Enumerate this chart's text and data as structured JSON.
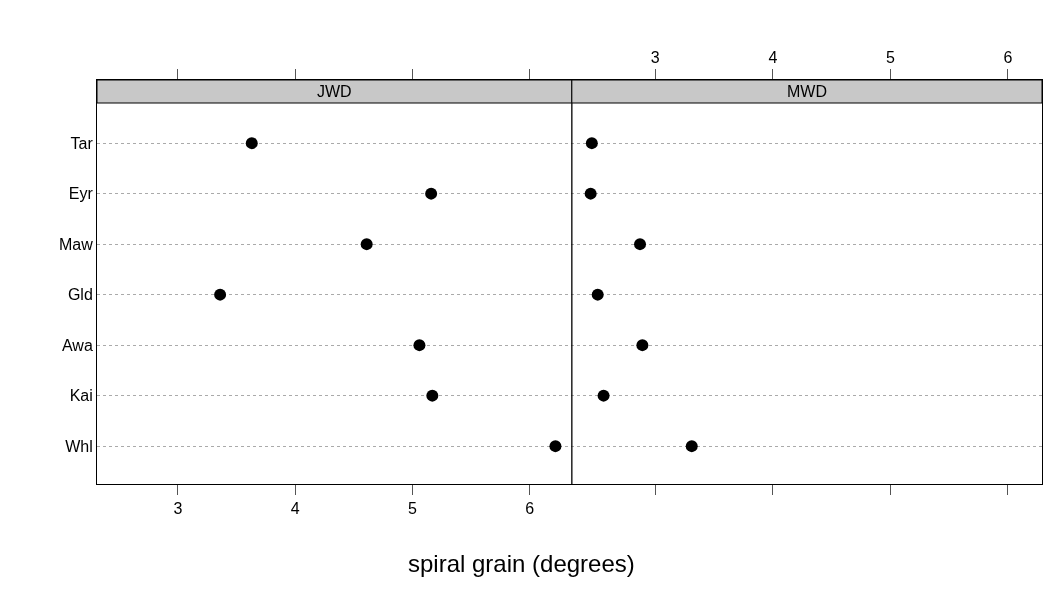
{
  "chart_data": {
    "type": "scatter",
    "orientation": "horizontal",
    "xlabel": "spiral grain (degrees)",
    "categories": [
      "Tar",
      "Eyr",
      "Maw",
      "Gld",
      "Awa",
      "Kai",
      "Whl"
    ],
    "series": [
      {
        "color": "#000000",
        "values": [
          3.63,
          5.16,
          4.61,
          3.36,
          5.06,
          5.17,
          6.22
        ]
      },
      {
        "color": "#000000",
        "axis": "x2",
        "values": [
          2.46,
          2.45,
          2.87,
          2.51,
          2.89,
          2.56,
          3.31
        ]
      }
    ],
    "xlim": [
      2.31,
      10.37
    ],
    "xticks": [
      3,
      4,
      5,
      6
    ],
    "x2lim": [
      -1.75,
      6.29
    ],
    "x2ticks": [
      3,
      4,
      5,
      6
    ],
    "ref_lines": [
      {
        "axis": "x",
        "value": 6.36,
        "color": "#000000"
      }
    ],
    "annotations": [
      "JWD",
      "MWD"
    ],
    "grid": "y",
    "marker": "circle"
  }
}
